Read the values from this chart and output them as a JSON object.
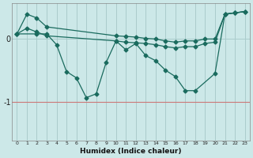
{
  "background_color": "#cce8e8",
  "grid_color": "#aacccc",
  "line_color": "#1a6b5e",
  "x_label": "Humidex (Indice chaleur)",
  "ytick_labels": [
    "0",
    "-1"
  ],
  "ytick_values": [
    0,
    -1
  ],
  "xlim": [
    -0.5,
    23.5
  ],
  "ylim": [
    -1.6,
    0.55
  ],
  "red_line_y": -1,
  "series1": {
    "x": [
      0,
      1,
      2,
      3,
      10,
      11,
      12,
      13,
      14,
      15,
      16,
      17,
      18,
      19,
      20,
      21,
      22,
      23
    ],
    "y": [
      0.07,
      0.38,
      0.32,
      0.18,
      0.04,
      0.03,
      0.02,
      0.0,
      -0.01,
      -0.04,
      -0.06,
      -0.04,
      -0.04,
      -0.01,
      -0.01,
      0.38,
      0.4,
      0.42
    ]
  },
  "series2": {
    "x": [
      0,
      1,
      2,
      3,
      10,
      11,
      12,
      13,
      14,
      15,
      16,
      17,
      18,
      19,
      20,
      21,
      22,
      23
    ],
    "y": [
      0.07,
      0.16,
      0.1,
      0.04,
      -0.04,
      -0.06,
      -0.07,
      -0.08,
      -0.1,
      -0.13,
      -0.15,
      -0.13,
      -0.13,
      -0.08,
      -0.06,
      0.38,
      0.4,
      0.42
    ]
  },
  "series3": {
    "x": [
      0,
      2,
      3,
      4,
      5,
      6,
      7,
      8,
      9,
      10,
      11,
      12,
      13,
      14,
      15,
      16,
      17,
      18,
      20,
      21,
      22,
      23
    ],
    "y": [
      0.07,
      0.07,
      0.07,
      -0.1,
      -0.52,
      -0.62,
      -0.93,
      -0.87,
      -0.38,
      -0.04,
      -0.18,
      -0.08,
      -0.27,
      -0.35,
      -0.5,
      -0.6,
      -0.82,
      -0.82,
      -0.55,
      0.38,
      0.4,
      0.42
    ]
  }
}
